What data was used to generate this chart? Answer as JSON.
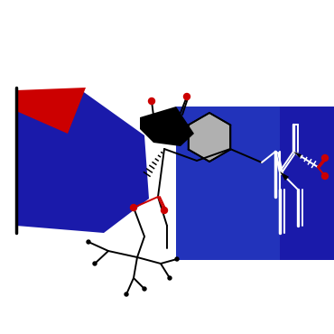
{
  "bg": "#ffffff",
  "black": "#000000",
  "blue": "#1a1aaa",
  "blue2": "#2222cc",
  "red": "#cc0000",
  "white": "#ffffff",
  "gray": "#b0b0b0",
  "lw": 1.4,
  "figsize": [
    3.7,
    3.7
  ],
  "dpi": 100,
  "xlim": [
    0,
    370
  ],
  "ylim": [
    0,
    370
  ]
}
